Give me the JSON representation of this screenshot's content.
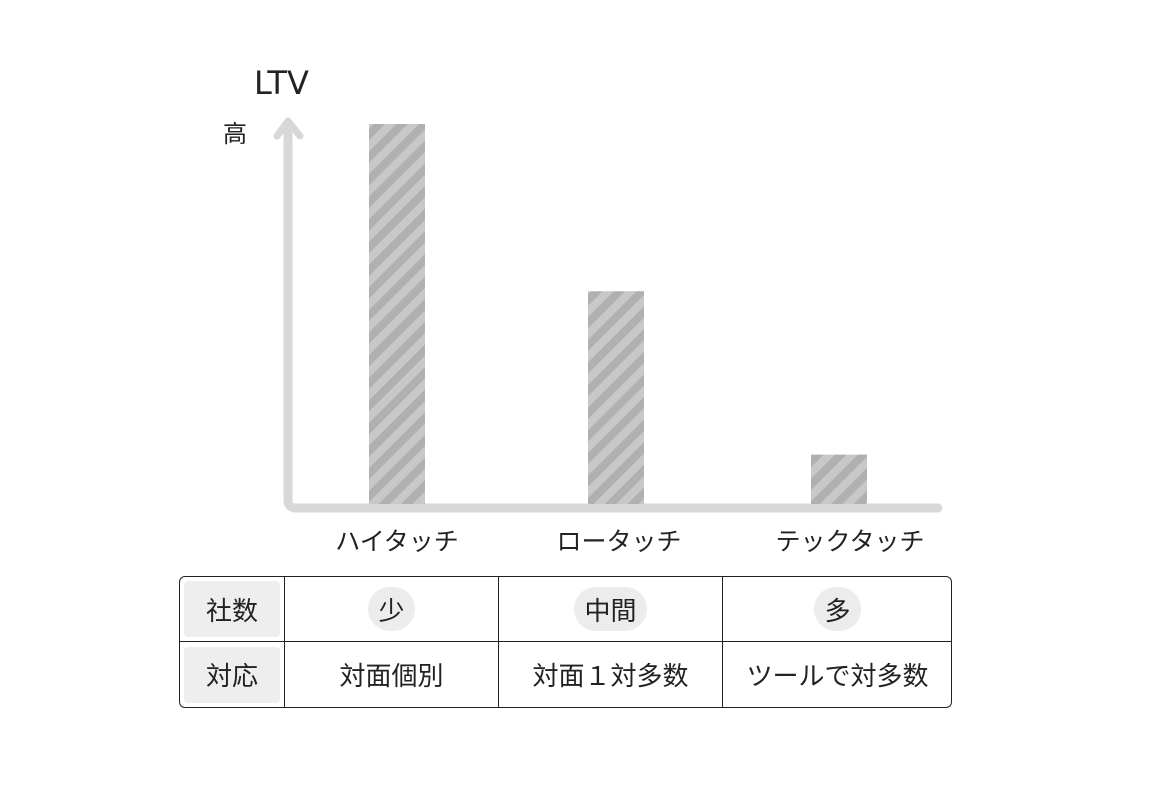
{
  "chart_data": {
    "type": "bar",
    "ylabel": "LTV",
    "y_high_label": "高",
    "categories": [
      "ハイタッチ",
      "ロータッチ",
      "テックタッチ"
    ],
    "values": [
      100,
      56,
      13
    ],
    "ylim": [
      0,
      100
    ],
    "grid": false,
    "bar_color": "#c8c8c8",
    "stripe_color": "#b0b0b0",
    "axis_color": "#d8d8d8"
  },
  "table": {
    "rows": [
      {
        "header": "社数",
        "cells": [
          "少",
          "中間",
          "多"
        ]
      },
      {
        "header": "対応",
        "cells": [
          "対面個別",
          "対面１対多数",
          "ツールで対多数"
        ]
      }
    ]
  }
}
